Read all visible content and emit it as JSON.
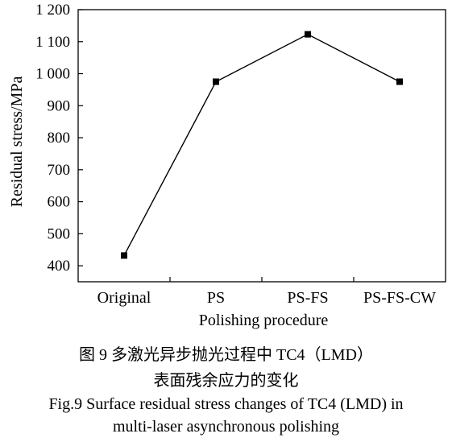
{
  "chart_data": {
    "type": "line",
    "categories": [
      "Original",
      "PS",
      "PS-FS",
      "PS-FS-CW"
    ],
    "series": [
      {
        "values": [
          432,
          975,
          1123,
          975
        ]
      }
    ],
    "xlabel": "Polishing procedure",
    "ylabel": "Residual stress/MPa",
    "ylim": [
      350,
      1200
    ],
    "yticks": [
      400,
      500,
      600,
      700,
      800,
      900,
      1000,
      1100,
      1200
    ],
    "ytick_labels": [
      "400",
      "500",
      "600",
      "700",
      "800",
      "900",
      "1 000",
      "1 100",
      "1 200"
    ],
    "marker": "square",
    "line_color": "#000000",
    "grid": false,
    "legend": "none"
  },
  "caption": {
    "cn_line1": "图 9    多激光异步抛光过程中 TC4（LMD）",
    "cn_line2": "表面残余应力的变化",
    "en_line1": "Fig.9 Surface residual stress changes of TC4 (LMD) in",
    "en_line2": "multi-laser asynchronous polishing"
  }
}
